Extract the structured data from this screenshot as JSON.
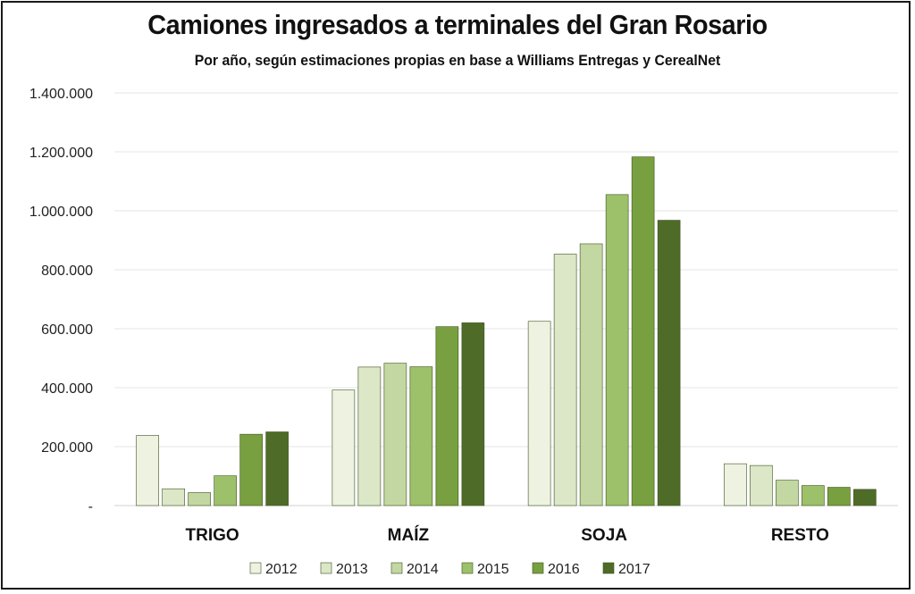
{
  "chart_data": {
    "type": "bar",
    "title": "Camiones ingresados a terminales del Gran Rosario",
    "subtitle": "Por año, según estimaciones propias en base a Williams Entregas y CerealNet",
    "categories": [
      "TRIGO",
      "MAÍZ",
      "SOJA",
      "RESTO"
    ],
    "ylim": [
      0,
      1400000
    ],
    "yticks": [
      {
        "value": 0,
        "label": "-"
      },
      {
        "value": 200000,
        "label": "200.000"
      },
      {
        "value": 400000,
        "label": "400.000"
      },
      {
        "value": 600000,
        "label": "600.000"
      },
      {
        "value": 800000,
        "label": "800.000"
      },
      {
        "value": 1000000,
        "label": "1.000.000"
      },
      {
        "value": 1200000,
        "label": "1.200.000"
      },
      {
        "value": 1400000,
        "label": "1.400.000"
      }
    ],
    "grid": true,
    "legend_position": "bottom",
    "series": [
      {
        "name": "2012",
        "color": "#edf2e1",
        "values": [
          238000,
          392000,
          625000,
          142000
        ]
      },
      {
        "name": "2013",
        "color": "#dbe7c6",
        "values": [
          57000,
          470000,
          853000,
          136000
        ]
      },
      {
        "name": "2014",
        "color": "#c2d7a1",
        "values": [
          44000,
          483000,
          888000,
          86000
        ]
      },
      {
        "name": "2015",
        "color": "#9dc16b",
        "values": [
          101000,
          471000,
          1055000,
          68000
        ]
      },
      {
        "name": "2016",
        "color": "#78a040",
        "values": [
          242000,
          607000,
          1183000,
          62000
        ]
      },
      {
        "name": "2017",
        "color": "#4f6b28",
        "values": [
          250000,
          620000,
          968000,
          55000
        ]
      }
    ]
  }
}
